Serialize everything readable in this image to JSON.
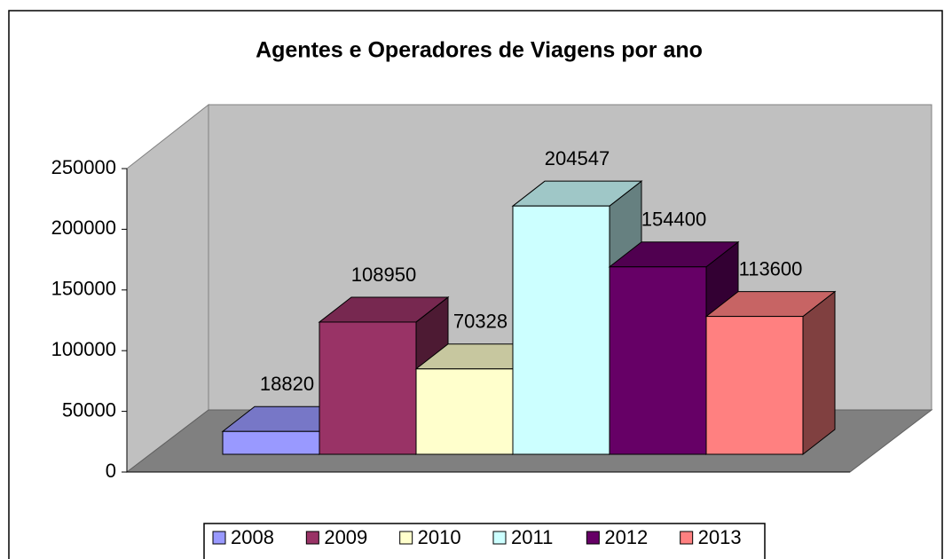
{
  "chart_data": {
    "type": "bar",
    "title": "Agentes e Operadores de Viagens por ano",
    "categories": [
      "2008",
      "2009",
      "2010",
      "2011",
      "2012",
      "2013"
    ],
    "values": [
      18820,
      108950,
      70328,
      204547,
      154400,
      113600
    ],
    "colors": [
      "#9999ff",
      "#993366",
      "#ffffcc",
      "#ccffff",
      "#660066",
      "#ff8080"
    ],
    "ylim": [
      0,
      250000
    ],
    "yticks": [
      0,
      50000,
      100000,
      150000,
      200000,
      250000
    ],
    "legend": "bottom"
  }
}
